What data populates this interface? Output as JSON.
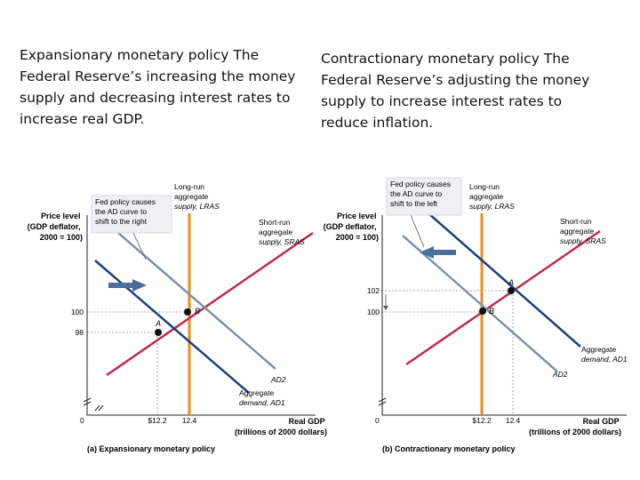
{
  "captions": {
    "left": "Expansionary monetary policy  The\nFederal Reserve’s increasing the money\nsupply and decreasing interest rates to\nincrease real GDP.",
    "right": "Contractionary monetary policy  The\nFederal Reserve’s adjusting the money\nsupply to increase interest rates to\nreduce inflation."
  },
  "panel_a": {
    "note": [
      "Fed policy causes",
      "the AD curve to",
      "shift to the right"
    ],
    "y_axis": [
      "Price level",
      "(GDP deflator,",
      "2000 = 100)"
    ],
    "lras": [
      "Long-run",
      "aggregate",
      "supply, LRAS"
    ],
    "sras": [
      "Short-run",
      "aggregate",
      "supply, SRAS"
    ],
    "price_high": "100",
    "price_low": "98",
    "origin": "0",
    "point_a": "A",
    "point_b": "B",
    "ad2": "AD2",
    "ad1": [
      "Aggregate",
      "demand, AD1"
    ],
    "gdp_low": "$12.2",
    "gdp_high": "12.4",
    "x_axis": [
      "Real GDP",
      "(trillions of 2000 dollars)"
    ],
    "title": "(a) Expansionary monetary policy"
  },
  "panel_b": {
    "note": [
      "Fed policy causes",
      "the AD curve to",
      "shift to the left"
    ],
    "y_axis": [
      "Price level",
      "(GDP deflator,",
      "2000 = 100)"
    ],
    "lras": [
      "Long-run",
      "aggregate",
      "supply, LRAS"
    ],
    "sras": [
      "Short-run",
      "aggregate",
      "supply, SRAS"
    ],
    "price_high": "102",
    "price_low": "100",
    "origin": "0",
    "point_a": "A",
    "point_b": "B",
    "ad1": [
      "Aggregate",
      "demand, AD1"
    ],
    "ad2": "AD2",
    "gdp_low": "$12.2",
    "gdp_high": "12.4",
    "x_axis": [
      "Real GDP",
      "(trillions of 2000 dollars)"
    ],
    "title": "(b) Contractionary monetary policy"
  },
  "colors": {
    "lras": "#f08a1c",
    "sras": "#c2274f",
    "ad_dark": "#1d3f7a",
    "ad_light": "#7f93ae",
    "note_bg": "#eef0f4",
    "arrow": "#4a6d9a"
  }
}
